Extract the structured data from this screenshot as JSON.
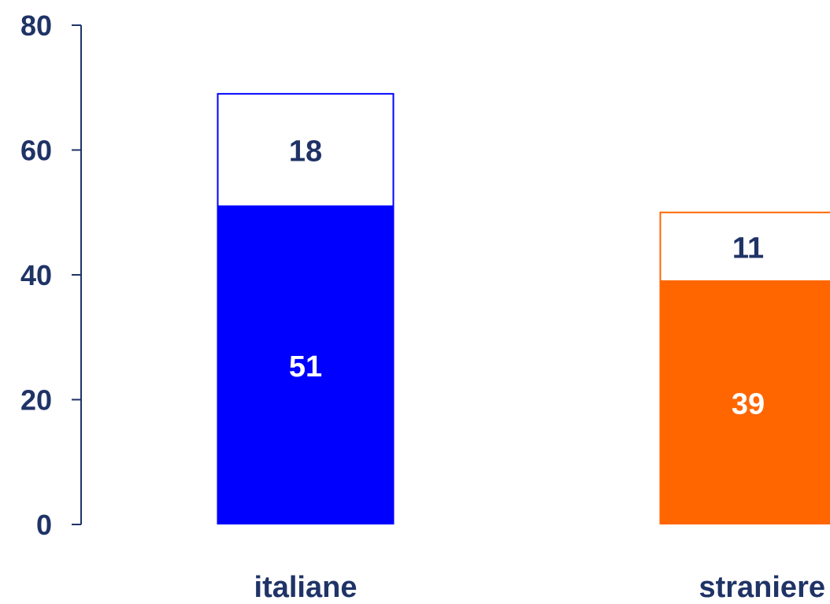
{
  "chart_data": {
    "type": "bar",
    "stacked": true,
    "categories": [
      "italiane",
      "straniere"
    ],
    "series": [
      {
        "values": [
          51,
          39
        ]
      },
      {
        "values": [
          18,
          11
        ]
      }
    ],
    "ylim": [
      0,
      80
    ],
    "yticks": [
      0,
      20,
      40,
      60,
      80
    ],
    "ytick_labels": [
      "0",
      "20",
      "40",
      "60",
      "80"
    ],
    "data_labels": [
      [
        "51",
        "39"
      ],
      [
        "18",
        "11"
      ]
    ],
    "grid": false,
    "legend": "none"
  },
  "colors": {
    "axis": "#1f3366",
    "text": "#1f3366",
    "bar_italiane": "#0000ff",
    "bar_straniere": "#ff6600",
    "top_segment_fill": "#ffffff",
    "label_on_fill": "#ffffff"
  }
}
